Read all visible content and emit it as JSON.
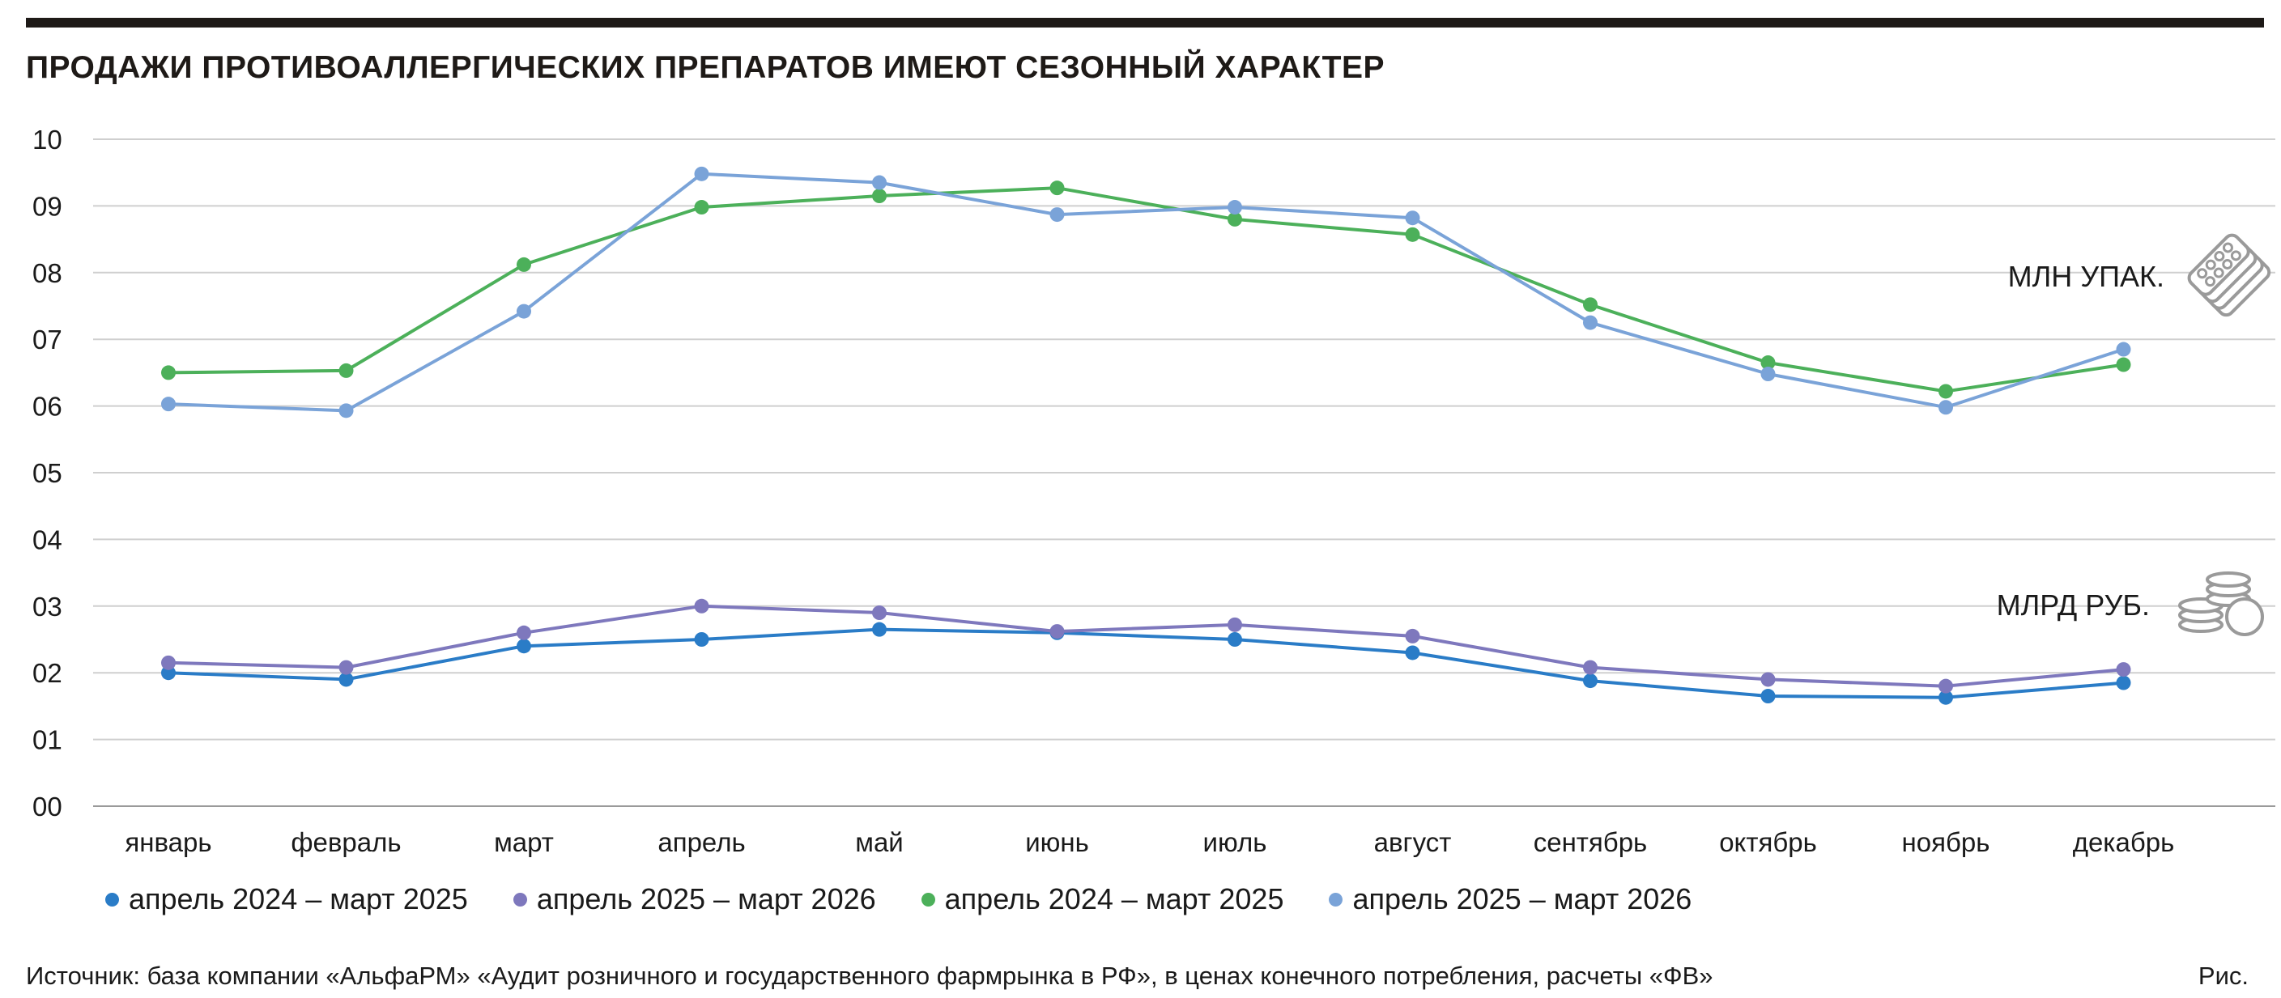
{
  "title": "ПРОДАЖИ ПРОТИВОАЛЛЕРГИЧЕСКИХ ПРЕПАРАТОВ ИМЕЮТ СЕЗОННЫЙ ХАРАКТЕР",
  "source": "Источник: база компании «АльфаРМ» «Аудит розничного и государственного фармрынка в РФ», в ценах конечного потребления, расчеты «ФВ»",
  "figure_label": "Рис.",
  "units": {
    "packages": "МЛН УПАК.",
    "rubles": "МЛРД РУБ."
  },
  "icons": {
    "packages": "pill-blister-stack-icon",
    "rubles": "coin-stack-icon"
  },
  "chart_data": {
    "type": "line",
    "title": "ПРОДАЖИ ПРОТИВОАЛЛЕРГИЧЕСКИХ ПРЕПАРАТОВ ИМЕЮТ СЕЗОННЫЙ ХАРАКТЕР",
    "categories": [
      "январь",
      "февраль",
      "март",
      "апрель",
      "май",
      "июнь",
      "июль",
      "август",
      "сентябрь",
      "октябрь",
      "ноябрь",
      "декабрь"
    ],
    "yticks": [
      "00",
      "01",
      "02",
      "03",
      "04",
      "05",
      "06",
      "07",
      "08",
      "09",
      "10"
    ],
    "ylim": [
      0,
      10
    ],
    "grid": true,
    "legend_position": "bottom",
    "series": [
      {
        "name": "апрель 2024 – март 2025",
        "color": "#2a7cc7",
        "group": "МЛРД РУБ.",
        "values": [
          2.0,
          1.9,
          2.4,
          2.5,
          2.65,
          2.6,
          2.5,
          2.3,
          1.88,
          1.65,
          1.63,
          1.85
        ]
      },
      {
        "name": "апрель 2025 – март 2026",
        "color": "#7e78bd",
        "group": "МЛРД РУБ.",
        "values": [
          2.15,
          2.08,
          2.6,
          3.0,
          2.9,
          2.62,
          2.72,
          2.55,
          2.08,
          1.9,
          1.8,
          2.05
        ]
      },
      {
        "name": "апрель 2024 – март 2025",
        "color": "#4cb05a",
        "group": "МЛН УПАК.",
        "values": [
          6.5,
          6.53,
          8.12,
          8.98,
          9.15,
          9.27,
          8.8,
          8.57,
          7.52,
          6.65,
          6.22,
          6.62
        ]
      },
      {
        "name": "апрель 2025 – март 2026",
        "color": "#7aa3d8",
        "group": "МЛН УПАК.",
        "values": [
          6.03,
          5.93,
          7.42,
          9.48,
          9.35,
          8.87,
          8.98,
          8.82,
          7.25,
          6.48,
          5.98,
          6.85
        ]
      }
    ]
  }
}
